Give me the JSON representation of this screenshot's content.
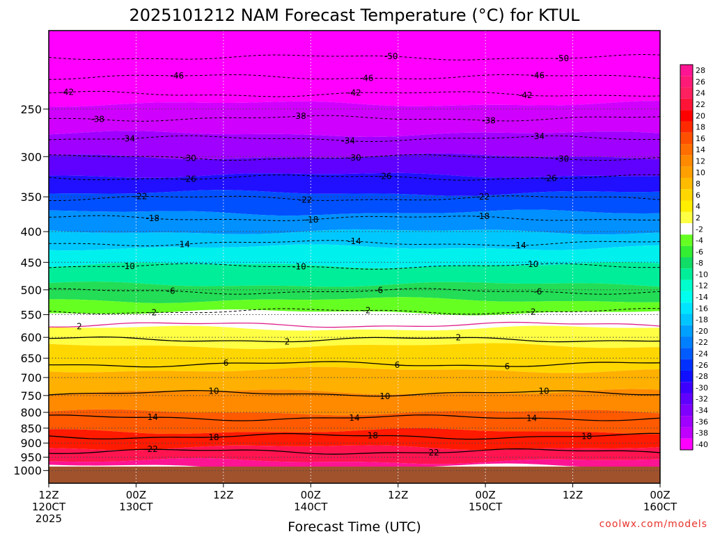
{
  "chart_data": {
    "type": "heatmap",
    "title": "2025101212 NAM Forecast Temperature (°C) for KTUL",
    "xlabel": "Forecast Time (UTC)",
    "ylabel": "",
    "credit": "coolwx.com/models",
    "y_axis": {
      "scale": "log-pressure",
      "range": [
        1050,
        185
      ],
      "ticks": [
        "250",
        "300",
        "350",
        "400",
        "450",
        "500",
        "550",
        "600",
        "650",
        "700",
        "750",
        "800",
        "850",
        "900",
        "950",
        "1000"
      ]
    },
    "x_axis": {
      "range": [
        "2025-10-12 12Z",
        "2025-10-16 00Z"
      ],
      "ticks": [
        {
          "line1": "12Z",
          "line2": "120CT",
          "line3": "2025"
        },
        {
          "line1": "00Z",
          "line2": "130CT",
          "line3": ""
        },
        {
          "line1": "12Z",
          "line2": "",
          "line3": ""
        },
        {
          "line1": "00Z",
          "line2": "140CT",
          "line3": ""
        },
        {
          "line1": "12Z",
          "line2": "",
          "line3": ""
        },
        {
          "line1": "00Z",
          "line2": "150CT",
          "line3": ""
        },
        {
          "line1": "12Z",
          "line2": "",
          "line3": ""
        },
        {
          "line1": "00Z",
          "line2": "160CT",
          "line3": ""
        }
      ]
    },
    "grid": true,
    "colorbar": {
      "position": "right",
      "entries": [
        {
          "label": "28",
          "color": "#ff1493"
        },
        {
          "label": "26",
          "color": "#ff1a78"
        },
        {
          "label": "24",
          "color": "#ff2060"
        },
        {
          "label": "22",
          "color": "#ff1438"
        },
        {
          "label": "20",
          "color": "#ff0000"
        },
        {
          "label": "18",
          "color": "#ff2a00"
        },
        {
          "label": "16",
          "color": "#ff5000"
        },
        {
          "label": "14",
          "color": "#ff6e00"
        },
        {
          "label": "12",
          "color": "#ff8a00"
        },
        {
          "label": "10",
          "color": "#ffa000"
        },
        {
          "label": "8",
          "color": "#ffbb00"
        },
        {
          "label": "6",
          "color": "#ffd700"
        },
        {
          "label": "4",
          "color": "#ffee00"
        },
        {
          "label": "2",
          "color": "#ffff44"
        },
        {
          "label": "-2",
          "color": "#ffffff"
        },
        {
          "label": "-4",
          "color": "#66ff22"
        },
        {
          "label": "-6",
          "color": "#33ee33"
        },
        {
          "label": "-8",
          "color": "#11dd66"
        },
        {
          "label": "-10",
          "color": "#00ee99"
        },
        {
          "label": "-12",
          "color": "#00ffcc"
        },
        {
          "label": "-14",
          "color": "#00ffee"
        },
        {
          "label": "-16",
          "color": "#00e5ff"
        },
        {
          "label": "-18",
          "color": "#00c5ff"
        },
        {
          "label": "-20",
          "color": "#00a0ff"
        },
        {
          "label": "-22",
          "color": "#0080ff"
        },
        {
          "label": "-24",
          "color": "#005cff"
        },
        {
          "label": "-26",
          "color": "#0030ff"
        },
        {
          "label": "-28",
          "color": "#1010ff"
        },
        {
          "label": "-30",
          "color": "#3c00ff"
        },
        {
          "label": "-32",
          "color": "#6000ff"
        },
        {
          "label": "-34",
          "color": "#8000ff"
        },
        {
          "label": "-36",
          "color": "#a000ff"
        },
        {
          "label": "-38",
          "color": "#c000ff"
        },
        {
          "label": "-40",
          "color": "#ff00ff"
        }
      ]
    },
    "bands": [
      {
        "p_top": 185,
        "p_bot": 245,
        "color": "#ff00ff"
      },
      {
        "p_top": 245,
        "p_bot": 275,
        "color": "#d000ff"
      },
      {
        "p_top": 275,
        "p_bot": 300,
        "color": "#a000ff"
      },
      {
        "p_top": 300,
        "p_bot": 322,
        "color": "#6000ff"
      },
      {
        "p_top": 322,
        "p_bot": 345,
        "color": "#2010ff"
      },
      {
        "p_top": 345,
        "p_bot": 372,
        "color": "#0050ff"
      },
      {
        "p_top": 372,
        "p_bot": 400,
        "color": "#0090ff"
      },
      {
        "p_top": 400,
        "p_bot": 425,
        "color": "#00c8ff"
      },
      {
        "p_top": 425,
        "p_bot": 455,
        "color": "#00f0ee"
      },
      {
        "p_top": 455,
        "p_bot": 490,
        "color": "#00ee99"
      },
      {
        "p_top": 490,
        "p_bot": 520,
        "color": "#22dd55"
      },
      {
        "p_top": 520,
        "p_bot": 545,
        "color": "#66ff22"
      },
      {
        "p_top": 545,
        "p_bot": 580,
        "color": "#ffffff"
      },
      {
        "p_top": 580,
        "p_bot": 620,
        "color": "#ffff44"
      },
      {
        "p_top": 620,
        "p_bot": 680,
        "color": "#ffd700"
      },
      {
        "p_top": 680,
        "p_bot": 740,
        "color": "#ffb000"
      },
      {
        "p_top": 740,
        "p_bot": 800,
        "color": "#ff8a00"
      },
      {
        "p_top": 800,
        "p_bot": 860,
        "color": "#ff5a00"
      },
      {
        "p_top": 860,
        "p_bot": 915,
        "color": "#ff1a00"
      },
      {
        "p_top": 915,
        "p_bot": 965,
        "color": "#ff1450"
      },
      {
        "p_top": 965,
        "p_bot": 985,
        "color": "#ff1493"
      }
    ],
    "ground": {
      "p_top": 985,
      "color": "#a0522d"
    },
    "isotherms": [
      {
        "value": -50,
        "p": 205,
        "dashed": true,
        "labels": [
          {
            "text": "-50",
            "x": 0.56
          },
          {
            "text": "-50",
            "x": 0.84
          }
        ]
      },
      {
        "value": -46,
        "p": 221,
        "dashed": true,
        "labels": [
          {
            "text": "-46",
            "x": 0.21
          },
          {
            "text": "-46",
            "x": 0.52
          },
          {
            "text": "-46",
            "x": 0.8
          }
        ]
      },
      {
        "value": -42,
        "p": 236,
        "dashed": true,
        "labels": [
          {
            "text": "-42",
            "x": 0.03
          },
          {
            "text": "-42",
            "x": 0.5
          },
          {
            "text": "-42",
            "x": 0.78
          }
        ]
      },
      {
        "value": -38,
        "p": 259,
        "dashed": true,
        "labels": [
          {
            "text": "-38",
            "x": 0.08
          },
          {
            "text": "-38",
            "x": 0.41
          },
          {
            "text": "-38",
            "x": 0.72
          }
        ]
      },
      {
        "value": -34,
        "p": 280,
        "dashed": true,
        "labels": [
          {
            "text": "-34",
            "x": 0.13
          },
          {
            "text": "-34",
            "x": 0.49
          },
          {
            "text": "-34",
            "x": 0.8
          }
        ]
      },
      {
        "value": -30,
        "p": 301,
        "dashed": true,
        "labels": [
          {
            "text": "-30",
            "x": 0.23
          },
          {
            "text": "-30",
            "x": 0.5
          },
          {
            "text": "-30",
            "x": 0.84
          }
        ]
      },
      {
        "value": -26,
        "p": 325,
        "dashed": true,
        "labels": [
          {
            "text": "-26",
            "x": 0.23
          },
          {
            "text": "-26",
            "x": 0.55
          },
          {
            "text": "-26",
            "x": 0.82
          }
        ]
      },
      {
        "value": -22,
        "p": 352,
        "dashed": true,
        "labels": [
          {
            "text": "-22",
            "x": 0.15
          },
          {
            "text": "-22",
            "x": 0.42
          },
          {
            "text": "-22",
            "x": 0.71
          }
        ]
      },
      {
        "value": -18,
        "p": 380,
        "dashed": true,
        "labels": [
          {
            "text": "-18",
            "x": 0.17
          },
          {
            "text": "-18",
            "x": 0.43
          },
          {
            "text": "-18",
            "x": 0.71
          }
        ]
      },
      {
        "value": -14,
        "p": 418,
        "dashed": true,
        "labels": [
          {
            "text": "-14",
            "x": 0.22
          },
          {
            "text": "-14",
            "x": 0.5
          },
          {
            "text": "-14",
            "x": 0.77
          }
        ]
      },
      {
        "value": -10,
        "p": 457,
        "dashed": true,
        "labels": [
          {
            "text": "-10",
            "x": 0.13
          },
          {
            "text": "-10",
            "x": 0.41
          },
          {
            "text": "-10",
            "x": 0.79
          }
        ]
      },
      {
        "value": -6,
        "p": 503,
        "dashed": true,
        "labels": [
          {
            "text": "-6",
            "x": 0.2
          },
          {
            "text": "-6",
            "x": 0.54
          },
          {
            "text": "-6",
            "x": 0.8
          }
        ]
      },
      {
        "value": -2,
        "p": 543,
        "dashed": true,
        "labels": [
          {
            "text": "-2",
            "x": 0.17
          },
          {
            "text": "-2",
            "x": 0.52
          },
          {
            "text": "-2",
            "x": 0.79
          }
        ]
      },
      {
        "value": 2,
        "p": 572,
        "dashed": false,
        "color": "#e0208a",
        "labels": [
          {
            "text": "2",
            "x": 0.05
          }
        ]
      },
      {
        "value": 2,
        "p": 605,
        "dashed": false,
        "labels": [
          {
            "text": "2",
            "x": 0.39
          },
          {
            "text": "2",
            "x": 0.67
          }
        ]
      },
      {
        "value": 6,
        "p": 665,
        "dashed": false,
        "labels": [
          {
            "text": "6",
            "x": 0.29
          },
          {
            "text": "6",
            "x": 0.57
          },
          {
            "text": "6",
            "x": 0.75
          }
        ]
      },
      {
        "value": 10,
        "p": 744,
        "dashed": false,
        "labels": [
          {
            "text": "10",
            "x": 0.27
          },
          {
            "text": "10",
            "x": 0.55
          },
          {
            "text": "10",
            "x": 0.81
          }
        ]
      },
      {
        "value": 14,
        "p": 817,
        "dashed": false,
        "labels": [
          {
            "text": "14",
            "x": 0.17
          },
          {
            "text": "14",
            "x": 0.5
          },
          {
            "text": "14",
            "x": 0.79
          }
        ]
      },
      {
        "value": 18,
        "p": 877,
        "dashed": false,
        "labels": [
          {
            "text": "18",
            "x": 0.27
          },
          {
            "text": "18",
            "x": 0.53
          },
          {
            "text": "18",
            "x": 0.88
          }
        ]
      },
      {
        "value": 22,
        "p": 930,
        "dashed": false,
        "labels": [
          {
            "text": "22",
            "x": 0.17
          },
          {
            "text": "22",
            "x": 0.63
          }
        ]
      }
    ]
  }
}
